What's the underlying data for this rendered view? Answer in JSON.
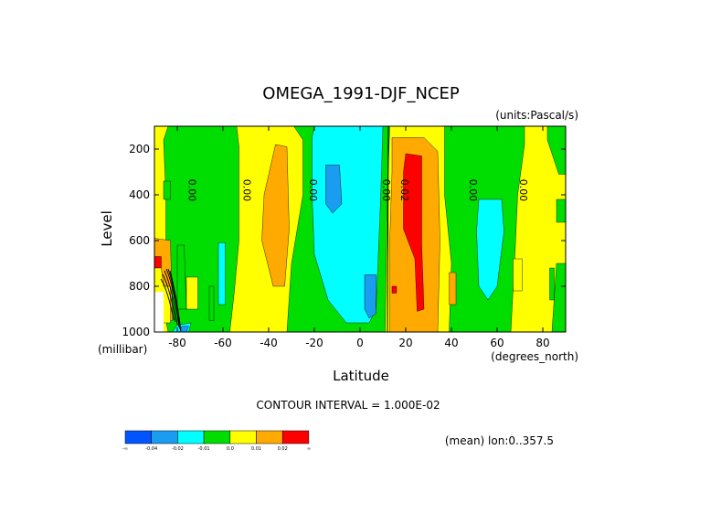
{
  "chart_data": {
    "type": "heatmap",
    "title": "OMEGA_1991-DJF_NCEP",
    "units": "(units:Pascal/s)",
    "xlabel": "Latitude",
    "ylabel": "Level",
    "x_unit_label": "(degrees_north)",
    "y_unit_label": "(millibar)",
    "xlim": [
      -90,
      90
    ],
    "ylim": [
      1000,
      100
    ],
    "x_ticks": [
      {
        "value": -80,
        "label": "-80"
      },
      {
        "value": -60,
        "label": "-60"
      },
      {
        "value": -40,
        "label": "-40"
      },
      {
        "value": -20,
        "label": "-20"
      },
      {
        "value": 0,
        "label": "0"
      },
      {
        "value": 20,
        "label": "20"
      },
      {
        "value": 40,
        "label": "40"
      },
      {
        "value": 60,
        "label": "60"
      },
      {
        "value": 80,
        "label": "80"
      }
    ],
    "y_ticks": [
      {
        "value": 200,
        "label": "200"
      },
      {
        "value": 400,
        "label": "400"
      },
      {
        "value": 600,
        "label": "600"
      },
      {
        "value": 800,
        "label": "800"
      },
      {
        "value": 1000,
        "label": "1000"
      }
    ],
    "contour_interval_text": "CONTOUR INTERVAL = 1.000E-02",
    "mean_text": "(mean) lon:0..357.5",
    "colorbar": {
      "colors": [
        "#0055ff",
        "#1a9cf0",
        "#00ffff",
        "#00dd00",
        "#ffff00",
        "#ffaa00",
        "#ff0000"
      ],
      "labels": [
        "-∞",
        "-0.04",
        "-0.02",
        "-0.01",
        "0.0",
        "0.01",
        "0.02",
        "∞"
      ]
    },
    "contour_labels": [
      {
        "text": "0.00",
        "lat": -75,
        "lev": 380
      },
      {
        "text": "0.00",
        "lat": -51,
        "lev": 380
      },
      {
        "text": "0.00",
        "lat": -22,
        "lev": 380
      },
      {
        "text": "0.00",
        "lat": 10,
        "lev": 380
      },
      {
        "text": "0.02",
        "lat": 18,
        "lev": 380
      },
      {
        "text": "0.00",
        "lat": 48,
        "lev": 380
      },
      {
        "text": "0.00",
        "lat": 70,
        "lev": 380
      }
    ],
    "regions": [
      {
        "level": "0.0",
        "color": "#ffff00",
        "polygons": [
          [
            [
              -90,
              100
            ],
            [
              90,
              100
            ],
            [
              90,
              1000
            ],
            [
              -90,
              1000
            ]
          ]
        ]
      },
      {
        "level": "-0.01",
        "color": "#00dd00",
        "polygons": [
          [
            [
              -84,
              100
            ],
            [
              -54,
              100
            ],
            [
              -53,
              190
            ],
            [
              -53,
              600
            ],
            [
              -55,
              820
            ],
            [
              -57,
              1000
            ],
            [
              -84,
              1000
            ],
            [
              -87,
              850
            ],
            [
              -85,
              650
            ],
            [
              -85,
              400
            ],
            [
              -86,
              160
            ]
          ],
          [
            [
              -29,
              100
            ],
            [
              13,
              100
            ],
            [
              12,
              400
            ],
            [
              11,
              1000
            ],
            [
              -32,
              1000
            ],
            [
              -30,
              700
            ],
            [
              -25,
              400
            ],
            [
              -25,
              160
            ]
          ],
          [
            [
              37,
              100
            ],
            [
              72,
              100
            ],
            [
              72,
              180
            ],
            [
              69,
              400
            ],
            [
              68,
              620
            ],
            [
              66,
              1000
            ],
            [
              39,
              1000
            ],
            [
              40,
              700
            ],
            [
              37,
              400
            ]
          ],
          [
            [
              82,
              100
            ],
            [
              90,
              100
            ],
            [
              90,
              310
            ],
            [
              87,
              310
            ],
            [
              82,
              160
            ]
          ],
          [
            [
              86,
              420
            ],
            [
              90,
              420
            ],
            [
              90,
              520
            ],
            [
              86,
              520
            ]
          ],
          [
            [
              86,
              700
            ],
            [
              90,
              700
            ],
            [
              90,
              1000
            ],
            [
              84,
              1000
            ]
          ]
        ]
      },
      {
        "level": "-0.02",
        "color": "#00ffff",
        "polygons": [
          [
            [
              -20,
              100
            ],
            [
              10,
              100
            ],
            [
              9,
              420
            ],
            [
              7,
              900
            ],
            [
              4,
              960
            ],
            [
              -6,
              960
            ],
            [
              -14,
              860
            ],
            [
              -20,
              660
            ],
            [
              -21,
              400
            ],
            [
              -21,
              150
            ]
          ],
          [
            [
              52,
              420
            ],
            [
              62,
              420
            ],
            [
              63,
              560
            ],
            [
              60,
              800
            ],
            [
              56,
              860
            ],
            [
              52,
              800
            ],
            [
              51,
              560
            ]
          ],
          [
            [
              -62,
              610
            ],
            [
              -59,
              610
            ],
            [
              -59,
              880
            ],
            [
              -62,
              880
            ]
          ],
          [
            [
              -80,
              970
            ],
            [
              -74,
              960
            ],
            [
              -75,
              1000
            ],
            [
              -82,
              1000
            ]
          ]
        ]
      },
      {
        "level": "-0.04",
        "color": "#1a9cf0",
        "polygons": [
          [
            [
              -15,
              270
            ],
            [
              -9,
              270
            ],
            [
              -8,
              440
            ],
            [
              -12,
              480
            ],
            [
              -15,
              440
            ]
          ],
          [
            [
              2,
              750
            ],
            [
              7,
              750
            ],
            [
              7,
              920
            ],
            [
              4,
              940
            ],
            [
              2,
              900
            ]
          ],
          [
            [
              -78,
              975
            ],
            [
              -75,
              975
            ],
            [
              -76,
              1000
            ],
            [
              -79,
              1000
            ]
          ]
        ]
      },
      {
        "level": "0.01",
        "color": "#ffaa00",
        "polygons": [
          [
            [
              14,
              150
            ],
            [
              28,
              150
            ],
            [
              34,
              210
            ],
            [
              35,
              600
            ],
            [
              34,
              1000
            ],
            [
              13,
              1000
            ],
            [
              13,
              600
            ],
            [
              14,
              300
            ]
          ],
          [
            [
              -37,
              180
            ],
            [
              -32,
              190
            ],
            [
              -31,
              550
            ],
            [
              -33,
              800
            ],
            [
              -38,
              800
            ],
            [
              -43,
              600
            ],
            [
              -42,
              400
            ]
          ],
          [
            [
              39,
              740
            ],
            [
              42,
              740
            ],
            [
              42,
              880
            ],
            [
              39,
              880
            ]
          ],
          [
            [
              -90,
              590
            ],
            [
              -83,
              600
            ],
            [
              -82,
              950
            ],
            [
              -90,
              950
            ]
          ]
        ]
      },
      {
        "level": "0.02",
        "color": "#ff0000",
        "polygons": [
          [
            [
              20,
              220
            ],
            [
              27,
              230
            ],
            [
              27,
              620
            ],
            [
              28,
              900
            ],
            [
              25,
              910
            ],
            [
              24,
              680
            ],
            [
              19,
              550
            ],
            [
              19,
              300
            ]
          ],
          [
            [
              14,
              800
            ],
            [
              16,
              800
            ],
            [
              16,
              830
            ],
            [
              14,
              830
            ]
          ],
          [
            [
              -90,
              670
            ],
            [
              -87,
              670
            ],
            [
              -87,
              720
            ],
            [
              -90,
              720
            ]
          ]
        ]
      },
      {
        "level": "0.0",
        "color": "#ffff00",
        "polygons": [
          [
            [
              -76,
              760
            ],
            [
              -71,
              760
            ],
            [
              -71,
              900
            ],
            [
              -76,
              900
            ]
          ],
          [
            [
              67,
              680
            ],
            [
              71,
              680
            ],
            [
              71,
              820
            ],
            [
              67,
              820
            ]
          ],
          [
            [
              -90,
              720
            ],
            [
              -87,
              720
            ],
            [
              -86,
              800
            ],
            [
              -83,
              800
            ],
            [
              -83,
              960
            ],
            [
              -90,
              960
            ]
          ]
        ]
      },
      {
        "level": "-0.01",
        "color": "#00dd00",
        "polygons": [
          [
            [
              -80,
              620
            ],
            [
              -77,
              620
            ],
            [
              -76,
              900
            ],
            [
              -80,
              900
            ]
          ],
          [
            [
              -66,
              800
            ],
            [
              -64,
              800
            ],
            [
              -64,
              950
            ],
            [
              -66,
              950
            ]
          ],
          [
            [
              83,
              720
            ],
            [
              85,
              720
            ],
            [
              85,
              860
            ],
            [
              83,
              860
            ]
          ],
          [
            [
              -86,
              340
            ],
            [
              -83,
              340
            ],
            [
              -83,
              420
            ],
            [
              -86,
              420
            ]
          ]
        ]
      },
      {
        "level": "blank",
        "color": "#ffffff",
        "polygons": [
          [
            [
              -90,
              825
            ],
            [
              -86,
              825
            ],
            [
              -86,
              1000
            ],
            [
              -90,
              1000
            ]
          ]
        ]
      }
    ]
  }
}
